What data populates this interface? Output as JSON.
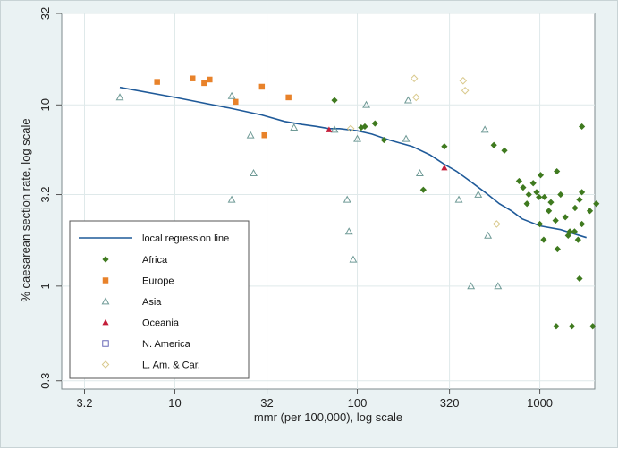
{
  "chart_data": {
    "type": "scatter",
    "title": "",
    "xlabel": "mmr (per 100,000), log scale",
    "ylabel": "% caesarean section rate, log scale",
    "x_scale": "log",
    "y_scale": "log",
    "xlim": [
      2.4,
      2000
    ],
    "ylim": [
      0.27,
      32
    ],
    "x_ticks": [
      {
        "v": 3.2,
        "label": "3.2"
      },
      {
        "v": 10,
        "label": "10"
      },
      {
        "v": 32,
        "label": "32"
      },
      {
        "v": 100,
        "label": "100"
      },
      {
        "v": 320,
        "label": "320"
      },
      {
        "v": 1000,
        "label": "1000"
      }
    ],
    "y_ticks": [
      {
        "v": 0.3,
        "label": "0.3"
      },
      {
        "v": 1,
        "label": "1"
      },
      {
        "v": 3.2,
        "label": "3.2"
      },
      {
        "v": 10,
        "label": "10"
      },
      {
        "v": 32,
        "label": "32"
      }
    ],
    "grid": true,
    "legend_position": "bottom-left",
    "colors": {
      "plot_background": "#ffffff",
      "outer_background": "#eaf2f3",
      "grid": "#dfe9ea",
      "regression_line": "#1f5a99",
      "africa": "#3f7a1f",
      "europe": "#e8822a",
      "asia": "#6f9a96",
      "oceania": "#c41e3a",
      "n_america": "#6a6ab8",
      "latam": "#d9c98c"
    },
    "regression_line": {
      "name": "local regression line",
      "x": [
        5.0,
        10,
        20,
        30,
        40,
        50,
        60,
        70,
        80,
        100,
        120,
        150,
        200,
        250,
        300,
        350,
        400,
        500,
        600,
        700,
        800,
        1000,
        1300,
        1800
      ],
      "y": [
        12.5,
        11.0,
        9.6,
        8.8,
        8.1,
        7.8,
        7.6,
        7.4,
        7.4,
        7.2,
        6.9,
        6.4,
        5.9,
        5.3,
        4.7,
        4.3,
        3.9,
        3.3,
        2.85,
        2.6,
        2.35,
        2.15,
        2.05,
        1.85
      ]
    },
    "series": [
      {
        "name": "Africa",
        "marker": "diamond",
        "points": [
          [
            75,
            10.6
          ],
          [
            105,
            7.5
          ],
          [
            110,
            7.6
          ],
          [
            125,
            7.9
          ],
          [
            140,
            6.4
          ],
          [
            230,
            3.4
          ],
          [
            300,
            5.9
          ],
          [
            560,
            6.0
          ],
          [
            640,
            5.6
          ],
          [
            770,
            3.8
          ],
          [
            810,
            3.5
          ],
          [
            850,
            2.85
          ],
          [
            870,
            3.2
          ],
          [
            920,
            3.7
          ],
          [
            960,
            3.3
          ],
          [
            990,
            3.1
          ],
          [
            1010,
            4.1
          ],
          [
            1060,
            3.1
          ],
          [
            1120,
            2.6
          ],
          [
            1150,
            2.9
          ],
          [
            1220,
            2.3
          ],
          [
            1380,
            2.4
          ],
          [
            1460,
            2.0
          ],
          [
            1560,
            2.7
          ],
          [
            1700,
            3.3
          ],
          [
            1300,
            3.2
          ],
          [
            1000,
            2.2
          ],
          [
            1050,
            1.8
          ],
          [
            1250,
            1.6
          ],
          [
            1430,
            1.9
          ],
          [
            1230,
            0.6
          ],
          [
            1500,
            0.6
          ],
          [
            1950,
            0.6
          ],
          [
            1650,
            1.1
          ],
          [
            1880,
            2.6
          ],
          [
            1700,
            2.2
          ],
          [
            1650,
            3.0
          ],
          [
            2040,
            2.85
          ],
          [
            1550,
            2.0
          ],
          [
            1620,
            1.8
          ],
          [
            1700,
            7.6
          ],
          [
            1240,
            4.3
          ]
        ]
      },
      {
        "name": "Europe",
        "marker": "square",
        "points": [
          [
            8,
            13.4
          ],
          [
            12.5,
            14.0
          ],
          [
            14.5,
            13.2
          ],
          [
            15.5,
            13.8
          ],
          [
            21.5,
            10.4
          ],
          [
            30,
            12.6
          ],
          [
            31,
            6.8
          ],
          [
            42,
            11.0
          ]
        ]
      },
      {
        "name": "Asia",
        "marker": "triangle",
        "points": [
          [
            5,
            11.0
          ],
          [
            20.5,
            11.2
          ],
          [
            20.5,
            3.0
          ],
          [
            26,
            6.8
          ],
          [
            27,
            4.2
          ],
          [
            45,
            7.5
          ],
          [
            75,
            7.3
          ],
          [
            88,
            3.0
          ],
          [
            90,
            2.0
          ],
          [
            95,
            1.4
          ],
          [
            100,
            6.5
          ],
          [
            112,
            10.0
          ],
          [
            185,
            6.5
          ],
          [
            190,
            10.6
          ],
          [
            220,
            4.2
          ],
          [
            360,
            3.0
          ],
          [
            420,
            1.0
          ],
          [
            460,
            3.2
          ],
          [
            500,
            7.3
          ],
          [
            520,
            1.9
          ],
          [
            590,
            1.0
          ]
        ]
      },
      {
        "name": "Oceania",
        "marker": "triangle-filled",
        "points": [
          [
            70,
            7.3
          ],
          [
            300,
            4.5
          ]
        ]
      },
      {
        "name": "N. America",
        "marker": "square-open",
        "points": []
      },
      {
        "name": "L. Am. & Car.",
        "marker": "diamond-open",
        "points": [
          [
            92,
            7.4
          ],
          [
            205,
            14.0
          ],
          [
            210,
            11.0
          ],
          [
            380,
            13.6
          ],
          [
            390,
            12.0
          ],
          [
            580,
            2.2
          ]
        ]
      }
    ]
  }
}
